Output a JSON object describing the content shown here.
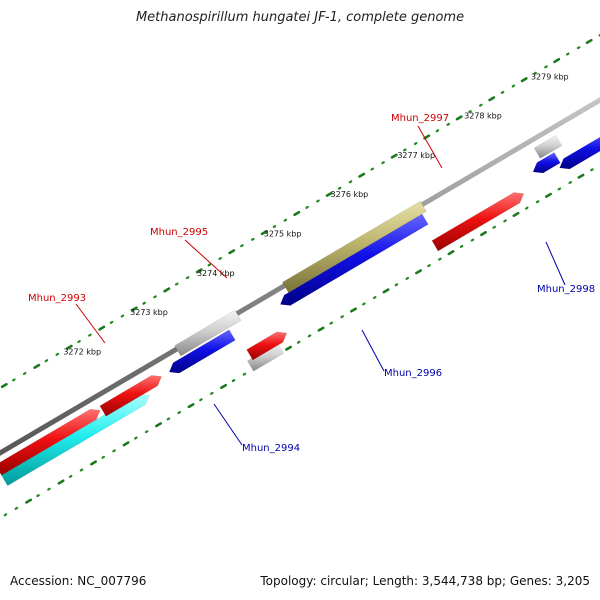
{
  "title": "Methanospirillum hungatei JF-1, complete genome",
  "footer": {
    "accession": "Accession: NC_007796",
    "summary": "Topology: circular; Length: 3,544,738 bp; Genes: 3,205"
  },
  "scale": {
    "unit": "kbp",
    "tick_labels": [
      "3272 kbp",
      "3273 kbp",
      "3274 kbp",
      "3275 kbp",
      "3276 kbp",
      "3277 kbp",
      "3278 kbp",
      "3279 kbp"
    ]
  },
  "genes": [
    {
      "id": "Mhun_2993",
      "strand": "+",
      "color": "#ee1111",
      "label_color": "#cc0000"
    },
    {
      "id": "Mhun_2994",
      "strand": "-",
      "color": "#1010e8",
      "label_color": "#0000aa"
    },
    {
      "id": "Mhun_2995",
      "strand": "+",
      "color": "#ee1111",
      "label_color": "#cc0000"
    },
    {
      "id": "Mhun_2996",
      "strand": "-",
      "color": "#1010e8",
      "label_color": "#0000aa"
    },
    {
      "id": "Mhun_2997",
      "strand": "+",
      "color": "#ee1111",
      "label_color": "#cc0000"
    },
    {
      "id": "Mhun_2998",
      "strand": "-",
      "color": "#1010e8",
      "label_color": "#0000aa"
    }
  ]
}
